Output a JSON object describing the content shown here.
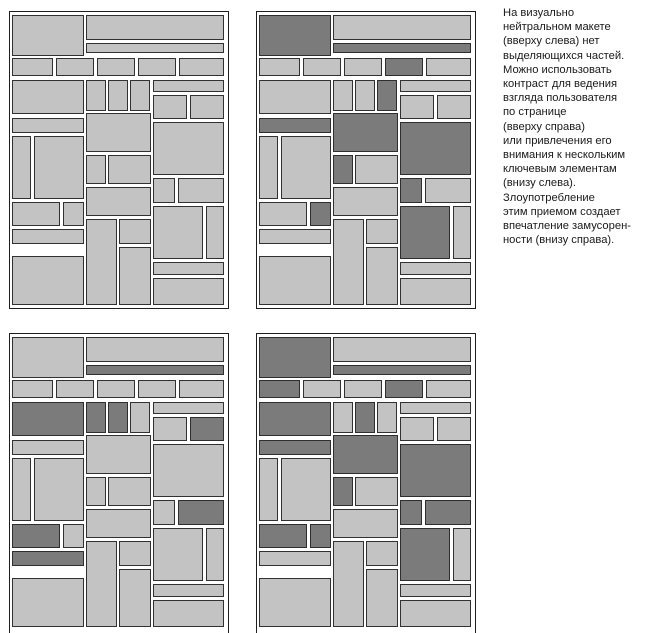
{
  "caption": {
    "lines": [
      "На визуально",
      "нейтральном макете",
      "(вверху слева) нет",
      "выделяющихся частей.",
      "Можно использовать",
      "контраст для ведения",
      "взгляда пользователя",
      "по странице",
      "(вверху справа)",
      "или привлечения его",
      "внимания к нескольким",
      "ключевым элементам",
      "(внизу слева).",
      "Злоупотребление",
      "этим приемом создает",
      "впечатление замусорен-",
      "ности (внизу справа)."
    ]
  },
  "colors": {
    "light_block": "#c3c3c3",
    "dark_block": "#7b7b7b",
    "outline": "#1f1f1f",
    "page_background": "#ffffff"
  },
  "panels": [
    {
      "name": "top-left",
      "dark_blocks": []
    },
    {
      "name": "top-right",
      "dark_blocks": [
        0,
        2,
        6,
        11,
        15,
        16,
        19,
        20,
        23,
        26,
        29
      ]
    },
    {
      "name": "bottom-left",
      "dark_blocks": [
        2,
        8,
        9,
        10,
        14,
        24,
        25,
        31
      ]
    },
    {
      "name": "bottom-right",
      "dark_blocks": [
        0,
        2,
        3,
        6,
        8,
        10,
        15,
        16,
        19,
        20,
        23,
        24,
        25,
        26,
        29
      ]
    }
  ]
}
